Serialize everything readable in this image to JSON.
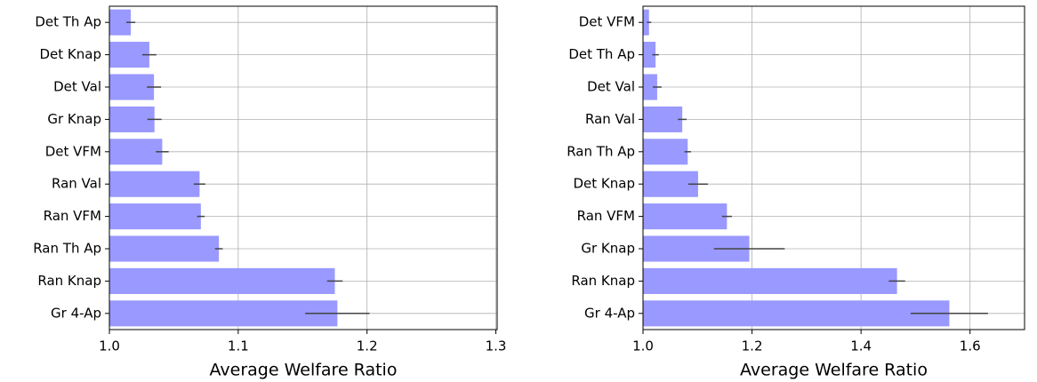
{
  "chart_data": [
    {
      "type": "bar",
      "orientation": "horizontal",
      "color": "#9999ff",
      "error_color": "#444444",
      "grid": true,
      "xlabel": "Average Welfare Ratio",
      "categories": [
        "Det Th Ap",
        "Det Knap",
        "Det Val",
        "Gr Knap",
        "Det VFM",
        "Ran Val",
        "Ran VFM",
        "Ran Th Ap",
        "Ran Knap",
        "Gr 4-Ap"
      ],
      "values": [
        1.0166,
        1.031,
        1.0346,
        1.035,
        1.041,
        1.07,
        1.071,
        1.085,
        1.175,
        1.177
      ],
      "errors": [
        0.0035,
        0.0055,
        0.0055,
        0.0055,
        0.005,
        0.0045,
        0.003,
        0.003,
        0.006,
        0.025
      ],
      "xlim": [
        1.0,
        1.301
      ],
      "xticks": [
        {
          "value": 1.0,
          "label": "1.0"
        },
        1.1,
        1.2,
        1.3
      ]
    },
    {
      "type": "bar",
      "orientation": "horizontal",
      "color": "#9999ff",
      "error_color": "#444444",
      "grid": true,
      "xlabel": "Average Welfare Ratio",
      "categories": [
        "Det VFM",
        "Det Th Ap",
        "Det Val",
        "Ran Val",
        "Ran Th Ap",
        "Det Knap",
        "Ran VFM",
        "Gr Knap",
        "Ran Knap",
        "Gr 4-Ap"
      ],
      "values": [
        1.011,
        1.023,
        1.026,
        1.072,
        1.082,
        1.101,
        1.154,
        1.195,
        1.466,
        1.562
      ],
      "errors": [
        0.004,
        0.006,
        0.008,
        0.008,
        0.006,
        0.018,
        0.009,
        0.065,
        0.015,
        0.071
      ],
      "xlim": [
        1.0,
        1.7
      ],
      "xticks": [
        {
          "value": 1.0,
          "label": "1.0"
        },
        1.2,
        1.4,
        1.6
      ]
    }
  ]
}
